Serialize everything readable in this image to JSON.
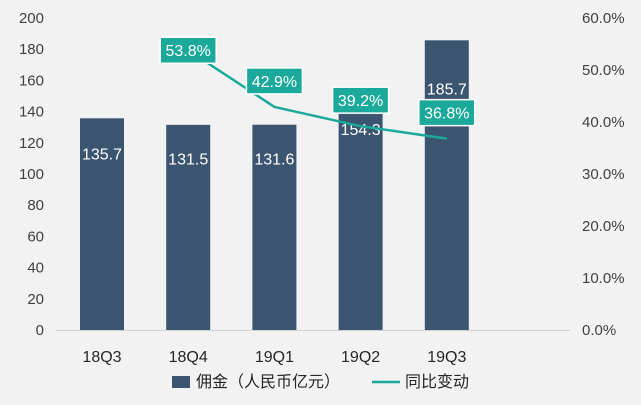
{
  "chart_data": {
    "type": "bar",
    "categories": [
      "18Q3",
      "18Q4",
      "19Q1",
      "19Q2",
      "19Q3"
    ],
    "series": [
      {
        "name": "佣金（人民币亿元）",
        "type": "bar",
        "axis": "left",
        "values": [
          135.7,
          131.5,
          131.6,
          154.3,
          185.7
        ],
        "labels": [
          "135.7",
          "131.5",
          "131.6",
          "154.3",
          "185.7"
        ],
        "color": "#3b5470"
      },
      {
        "name": "同比变动",
        "type": "line",
        "axis": "right",
        "values": [
          null,
          53.8,
          42.9,
          39.2,
          36.8
        ],
        "labels": [
          "",
          "53.8%",
          "42.9%",
          "39.2%",
          "36.8%"
        ],
        "color": "#1aa99a"
      }
    ],
    "y_left": {
      "min": 0,
      "max": 200,
      "step": 20,
      "ticks": [
        "0",
        "20",
        "40",
        "60",
        "80",
        "100",
        "120",
        "140",
        "160",
        "180",
        "200"
      ]
    },
    "y_right": {
      "min": 0,
      "max": 60,
      "step": 10,
      "ticks": [
        "0.0%",
        "10.0%",
        "20.0%",
        "30.0%",
        "40.0%",
        "50.0%",
        "60.0%"
      ]
    },
    "grid": false,
    "legend": "bottom",
    "background": "#f2f2f2"
  }
}
